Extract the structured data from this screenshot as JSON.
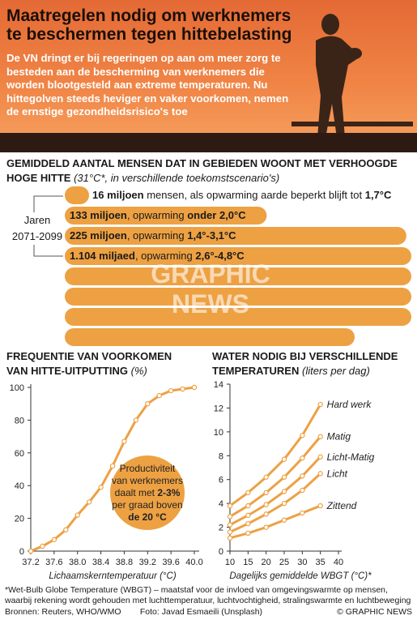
{
  "header": {
    "title": "Maatregelen nodig om werknemers te beschermen tegen hittebelasting",
    "deck": "De VN dringt er bij regeringen op aan om meer zorg te besteden aan de bescherming van werknemers die worden blootgesteld aan extreme temperaturen. Nu hittegolven steeds heviger en vaker voorkomen, nemen de ernstige gezondheidsrisico's toe"
  },
  "population": {
    "title": "GEMIDDELD AANTAL MENSEN DAT IN GEBIEDEN WOONT MET VERHOOGDE HOGE HITTE",
    "subtitle": "(31°C*, in verschillende toekomstscenario's)",
    "period_label_1": "Jaren",
    "period_label_2": "2071-2099",
    "scenarios": [
      {
        "amount": "16 miljoen",
        "text1": " mensen, als opwarming aarde beperkt blijft tot ",
        "range": "1,7°C",
        "value_millions": 16
      },
      {
        "amount": "133 miljoen",
        "text1": ", opwarming ",
        "range": "onder 2,0°C",
        "value_millions": 133
      },
      {
        "amount": "225 miljoen",
        "text1": ", opwarming ",
        "range": "1,4°-3,1°C",
        "value_millions": 225
      },
      {
        "amount": "1.104 miljaed",
        "text1": ", opwarming ",
        "range": "2,6°-4,8°C",
        "value_millions": 1104
      }
    ],
    "bar_color": "#eda143"
  },
  "heat_chart": {
    "title_line1": "FREQUENTIE VAN VOORKOMEN",
    "title_line2": "VAN HITTE-UITPUTTING",
    "unit": "(%)",
    "xlabel": "Lichaamskerntemperatuur (°C)",
    "callout_pre": "Productiviteit van werknemers daalt met ",
    "callout_pct": "2-3%",
    "callout_mid": " per graad boven ",
    "callout_temp": "de 20 °C",
    "callout_lines": [
      "Productiviteit",
      "van werknemers",
      "daalt met ",
      "2-3%",
      "per graad boven",
      "de 20 °C"
    ]
  },
  "water_chart": {
    "title_line1": "WATER NODIG BIJ VERSCHILLENDE",
    "title_line2": "TEMPERATUREN",
    "unit": "(liters per dag)",
    "xlabel": "Dagelijks gemiddelde WBGT (°C)*"
  },
  "chart_data": [
    {
      "type": "line",
      "title": "FREQUENTIE VAN VOORKOMEN VAN HITTE-UITPUTTING (%)",
      "xlabel": "Lichaamskerntemperatuur (°C)",
      "ylabel": "",
      "xlim": [
        37.2,
        40.0
      ],
      "ylim": [
        0,
        100
      ],
      "x_ticks": [
        "37.2",
        "37.6",
        "38.0",
        "38.4",
        "38.8",
        "39.2",
        "39.6",
        "40.0"
      ],
      "y_ticks": [
        "0",
        "20",
        "40",
        "60",
        "80",
        "100"
      ],
      "series": [
        {
          "x": [
            37.2,
            37.4,
            37.6,
            37.8,
            38.0,
            38.2,
            38.4,
            38.6,
            38.8,
            39.0,
            39.2,
            39.4,
            39.6,
            39.8,
            40.0
          ],
          "y": [
            0,
            3,
            7,
            13,
            22,
            30,
            39,
            52,
            67,
            80,
            90,
            95,
            98,
            99,
            100
          ]
        }
      ],
      "color": "#eda143",
      "grid": false
    },
    {
      "type": "line",
      "title": "WATER NODIG BIJ VERSCHILLENDE TEMPERATUREN (liters per dag)",
      "xlabel": "Dagelijks gemiddelde WBGT (°C)*",
      "ylabel": "",
      "xlim": [
        10,
        40
      ],
      "ylim": [
        0,
        14
      ],
      "x_ticks": [
        "10",
        "15",
        "20",
        "25",
        "30",
        "35",
        "40"
      ],
      "y_ticks": [
        "0",
        "2",
        "4",
        "6",
        "8",
        "10",
        "12",
        "14"
      ],
      "x": [
        10,
        15,
        20,
        25,
        30,
        35
      ],
      "series": [
        {
          "name": "Hard werk",
          "values": [
            3.8,
            4.9,
            6.2,
            7.7,
            9.7,
            12.3
          ]
        },
        {
          "name": "Matig",
          "values": [
            2.9,
            3.8,
            4.9,
            6.2,
            7.8,
            9.6
          ]
        },
        {
          "name": "Licht-Matig",
          "values": [
            2.2,
            3.0,
            3.9,
            5.0,
            6.3,
            7.9
          ]
        },
        {
          "name": "Licht",
          "values": [
            1.6,
            2.3,
            3.1,
            4.0,
            5.1,
            6.5
          ]
        },
        {
          "name": "Zittend",
          "values": [
            1.1,
            1.5,
            2.0,
            2.6,
            3.2,
            3.8
          ]
        }
      ],
      "color": "#eda143",
      "grid": false
    }
  ],
  "footer": {
    "footnote": "*Wet-Bulb Globe Temperature (WBGT) – maatstaf voor de invloed van omgevingswarmte op mensen, waarbij rekening wordt gehouden met luchttemperatuur, luchtvochtigheid, stralingswarmte en luchtbeweging",
    "sources": "Bronnen: Reuters, WHO/WMO",
    "photo_credit": "Foto: Javad Esmaeili (Unsplash)",
    "brand": "© GRAPHIC NEWS"
  },
  "watermark": "GRAPHIC NEWS"
}
